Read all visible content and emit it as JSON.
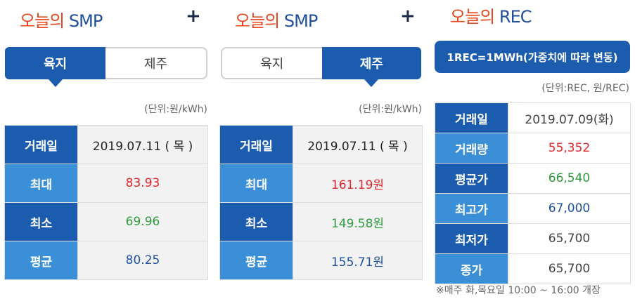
{
  "panel1": {
    "title_ko": "오늘의",
    "title_en": "SMP",
    "tabs": [
      "육지",
      "제주"
    ],
    "active_tab": "육지",
    "unit": "(단위:원/kWh)",
    "rows": [
      {
        "label": "거래일",
        "value": "2019.07.11 ( 목 )"
      },
      {
        "label": "최대",
        "value": "83.93"
      },
      {
        "label": "최소",
        "value": "69.96"
      },
      {
        "label": "평균",
        "value": "80.25"
      }
    ]
  },
  "panel2": {
    "title_ko": "오늘의",
    "title_en": "SMP",
    "tabs": [
      "육지",
      "제주"
    ],
    "active_tab": "제주",
    "unit": "(단위:원/kWh)",
    "rows": [
      {
        "label": "거래일",
        "value": "2019.07.11 ( 목 )"
      },
      {
        "label": "최대",
        "value": "161.19원"
      },
      {
        "label": "최소",
        "value": "149.58원"
      },
      {
        "label": "평균",
        "value": "155.71원"
      }
    ]
  },
  "plus": "+",
  "panel3": {
    "title_ko": "오늘의",
    "title_en": "REC",
    "info_button": "1REC=1MWh(가중치에 따라 변동)",
    "unit": "(단위:REC, 원/REC)",
    "rows": [
      {
        "label": "거래일",
        "value": "2019.07.09(화)"
      },
      {
        "label": "거래량",
        "value": "55,352"
      },
      {
        "label": "평균가",
        "value": "66,540"
      },
      {
        "label": "최고가",
        "value": "67,000"
      },
      {
        "label": "최저가",
        "value": "65,700"
      },
      {
        "label": "종가",
        "value": "65,700"
      }
    ],
    "note": "※매주 화,목요일 10:00 ~ 16:00 개장"
  },
  "colors": {
    "accent": "#1b5cae",
    "label_light": "#3a8fd6",
    "title_orange": "#e8461e",
    "max": "#e3242b",
    "min": "#2e9c3e",
    "avg": "#1f4f9e"
  }
}
